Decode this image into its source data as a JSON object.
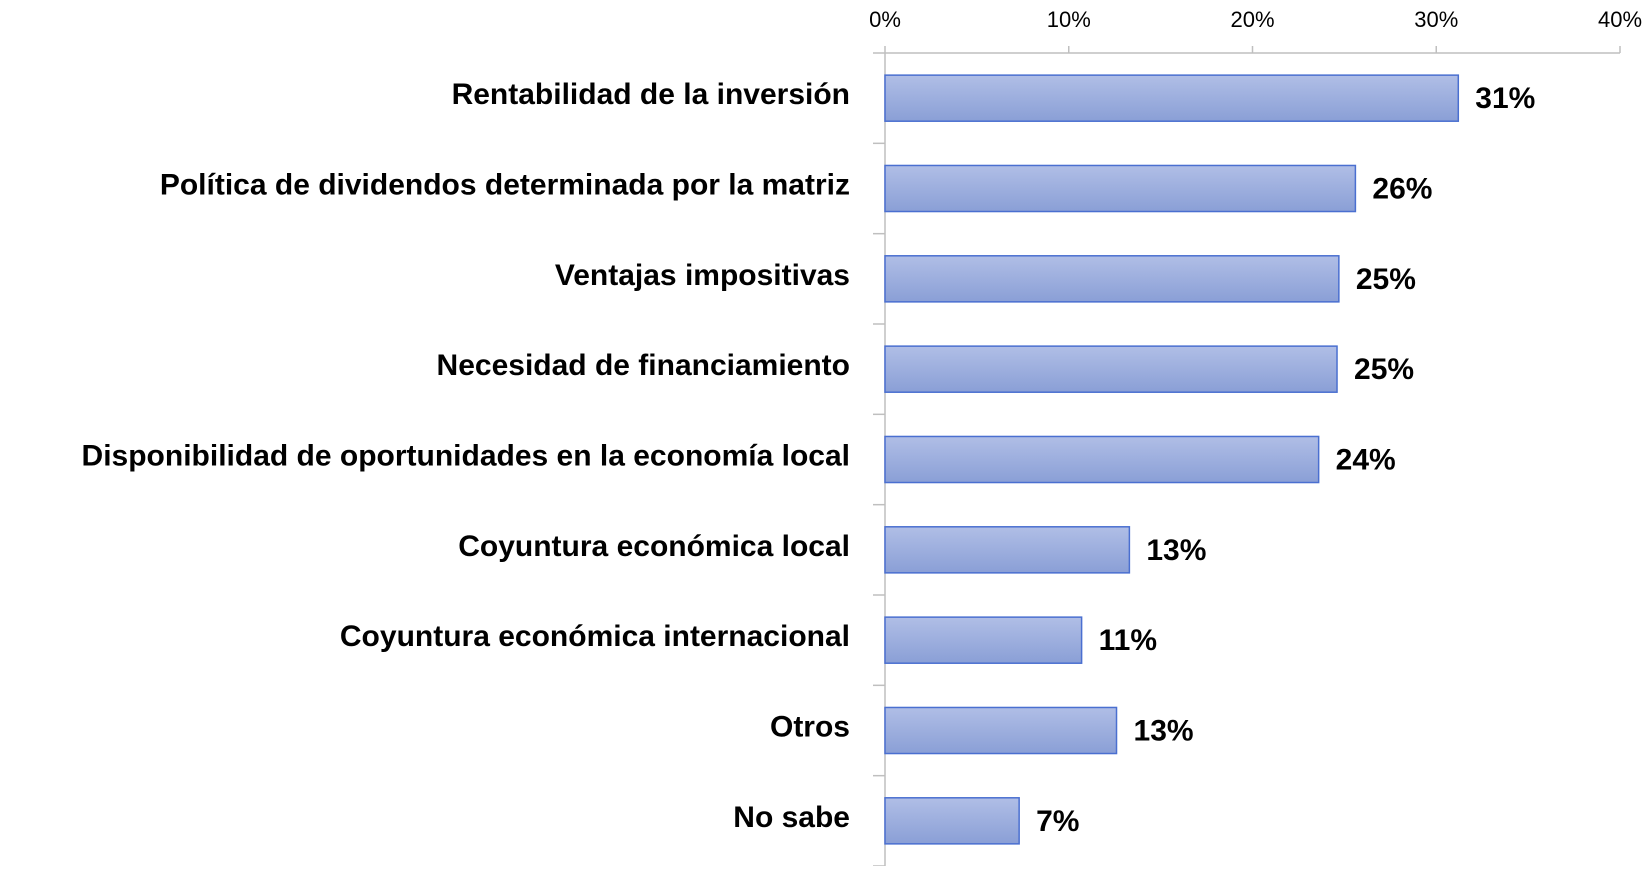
{
  "chart_data": {
    "type": "bar",
    "orientation": "horizontal",
    "categories": [
      "Rentabilidad de la inversión",
      "Política de dividendos determinada por la matriz",
      "Ventajas impositivas",
      "Necesidad de financiamiento",
      "Disponibilidad de oportunidades en la economía local",
      "Coyuntura económica local",
      "Coyuntura económica internacional",
      "Otros",
      "No sabe"
    ],
    "values": [
      31.2,
      25.6,
      24.7,
      24.6,
      23.6,
      13.3,
      10.7,
      12.6,
      7.3
    ],
    "value_labels": [
      "31%",
      "26%",
      "25%",
      "25%",
      "24%",
      "13%",
      "11%",
      "13%",
      "7%"
    ],
    "color": "#9aacdc",
    "xlim": [
      0,
      40
    ],
    "xticks": [
      {
        "value": 0,
        "label": "0%"
      },
      {
        "value": 10,
        "label": "10%"
      },
      {
        "value": 20,
        "label": "20%"
      },
      {
        "value": 30,
        "label": "30%"
      },
      {
        "value": 40,
        "label": "40%"
      }
    ]
  }
}
